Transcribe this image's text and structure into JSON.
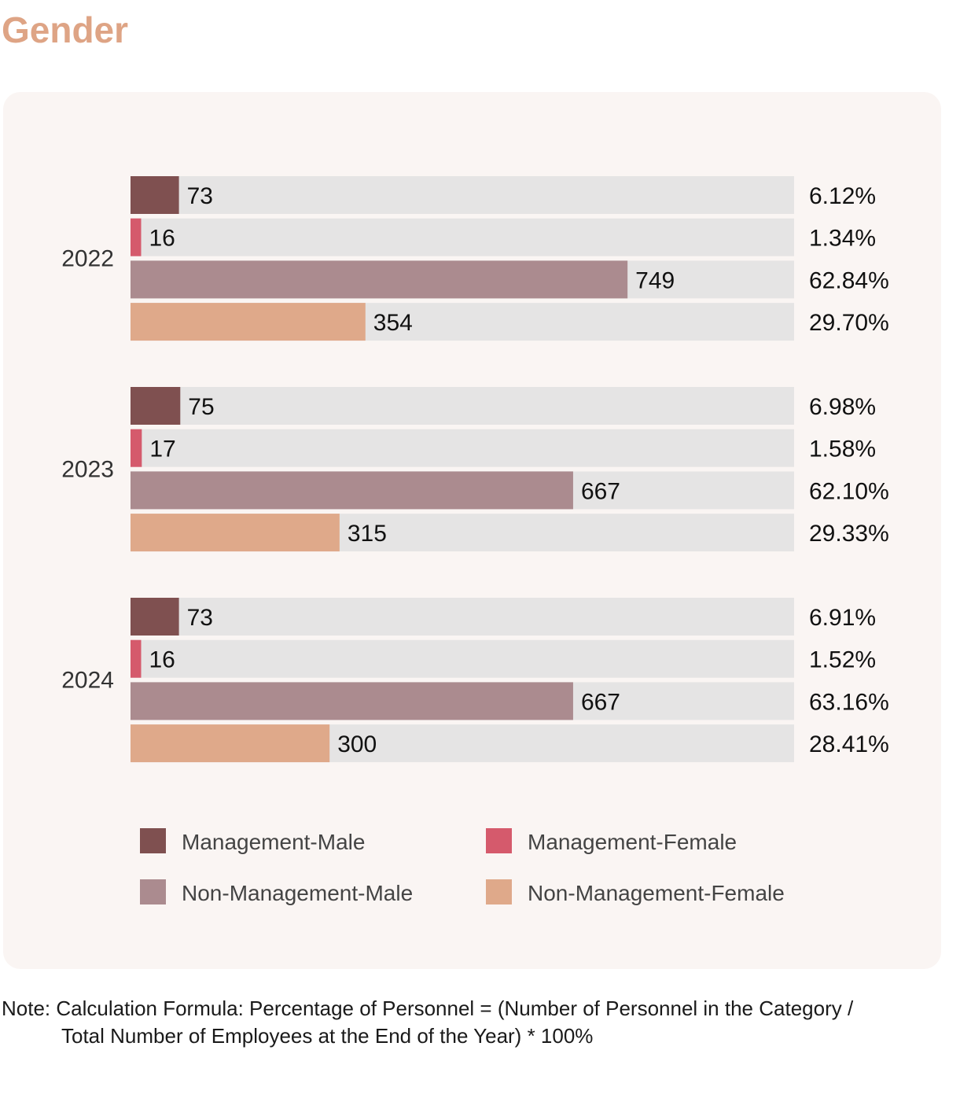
{
  "heading": "Gender",
  "note": {
    "line1": "Note: Calculation Formula: Percentage of Personnel = (Number of Personnel in the Category /",
    "line2": "Total Number of Employees at the End of the Year) * 100%"
  },
  "colors": {
    "heading": "#dea485",
    "panel": "#faf5f3",
    "track": "#e5e4e4",
    "management_male": "#7f5050",
    "management_female": "#d55a6c",
    "non_management_male": "#ab8b8f",
    "non_management_female": "#dfa98a"
  },
  "chart_data": {
    "type": "bar",
    "orientation": "horizontal",
    "xlim": [
      0,
      1000
    ],
    "grid": false,
    "legend_position": "bottom",
    "groups": [
      {
        "label": "2022",
        "bars": [
          {
            "series": "Management-Male",
            "value": 73,
            "percent": "6.12%"
          },
          {
            "series": "Management-Female",
            "value": 16,
            "percent": "1.34%"
          },
          {
            "series": "Non-Management-Male",
            "value": 749,
            "percent": "62.84%"
          },
          {
            "series": "Non-Management-Female",
            "value": 354,
            "percent": "29.70%"
          }
        ]
      },
      {
        "label": "2023",
        "bars": [
          {
            "series": "Management-Male",
            "value": 75,
            "percent": "6.98%"
          },
          {
            "series": "Management-Female",
            "value": 17,
            "percent": "1.58%"
          },
          {
            "series": "Non-Management-Male",
            "value": 667,
            "percent": "62.10%"
          },
          {
            "series": "Non-Management-Female",
            "value": 315,
            "percent": "29.33%"
          }
        ]
      },
      {
        "label": "2024",
        "bars": [
          {
            "series": "Management-Male",
            "value": 73,
            "percent": "6.91%"
          },
          {
            "series": "Management-Female",
            "value": 16,
            "percent": "1.52%"
          },
          {
            "series": "Non-Management-Male",
            "value": 667,
            "percent": "63.16%"
          },
          {
            "series": "Non-Management-Female",
            "value": 300,
            "percent": "28.41%"
          }
        ]
      }
    ],
    "legend": [
      {
        "name": "Management-Male",
        "color": "#7f5050"
      },
      {
        "name": "Management-Female",
        "color": "#d55a6c"
      },
      {
        "name": "Non-Management-Male",
        "color": "#ab8b8f"
      },
      {
        "name": "Non-Management-Female",
        "color": "#dfa98a"
      }
    ]
  }
}
